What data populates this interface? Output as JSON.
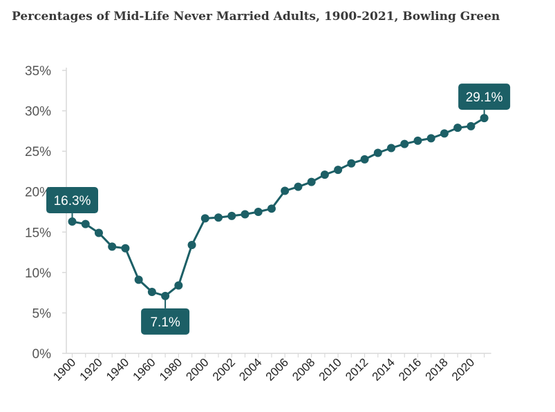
{
  "chart_data": {
    "type": "line",
    "title": "Percentages of Mid-Life Never Married Adults, 1900-2021, Bowling Green",
    "xlabel": "",
    "ylabel": "",
    "ylim": [
      0,
      35
    ],
    "y_ticks": [
      "0%",
      "5%",
      "10%",
      "15%",
      "20%",
      "25%",
      "30%",
      "35%"
    ],
    "x_tick_labels": [
      "1900",
      "1920",
      "1940",
      "1960",
      "1980",
      "2000",
      "2002",
      "2004",
      "2006",
      "2008",
      "2010",
      "2012",
      "2014",
      "2016",
      "2018",
      "2020"
    ],
    "x": [
      "1900",
      "1910",
      "1920",
      "1930",
      "1940",
      "1950",
      "1960",
      "1970",
      "1980",
      "1990",
      "2000",
      "2001",
      "2002",
      "2003",
      "2004",
      "2005",
      "2006",
      "2007",
      "2008",
      "2009",
      "2010",
      "2011",
      "2012",
      "2013",
      "2014",
      "2015",
      "2016",
      "2017",
      "2018",
      "2019",
      "2020",
      "2021"
    ],
    "series": [
      {
        "values": [
          16.3,
          16.0,
          14.9,
          13.2,
          13.0,
          9.1,
          7.6,
          7.1,
          8.4,
          13.4,
          16.7,
          16.8,
          17.0,
          17.2,
          17.5,
          17.9,
          20.1,
          20.6,
          21.2,
          22.1,
          22.7,
          23.5,
          24.0,
          24.8,
          25.4,
          25.9,
          26.3,
          26.6,
          27.2,
          27.9,
          28.1,
          29.1
        ],
        "color": "#1c5f66"
      }
    ],
    "annotations": [
      {
        "index": 0,
        "label": "16.3%"
      },
      {
        "index": 7,
        "label": "7.1%"
      },
      {
        "index": 31,
        "label": "29.1%"
      }
    ],
    "grid": false
  }
}
